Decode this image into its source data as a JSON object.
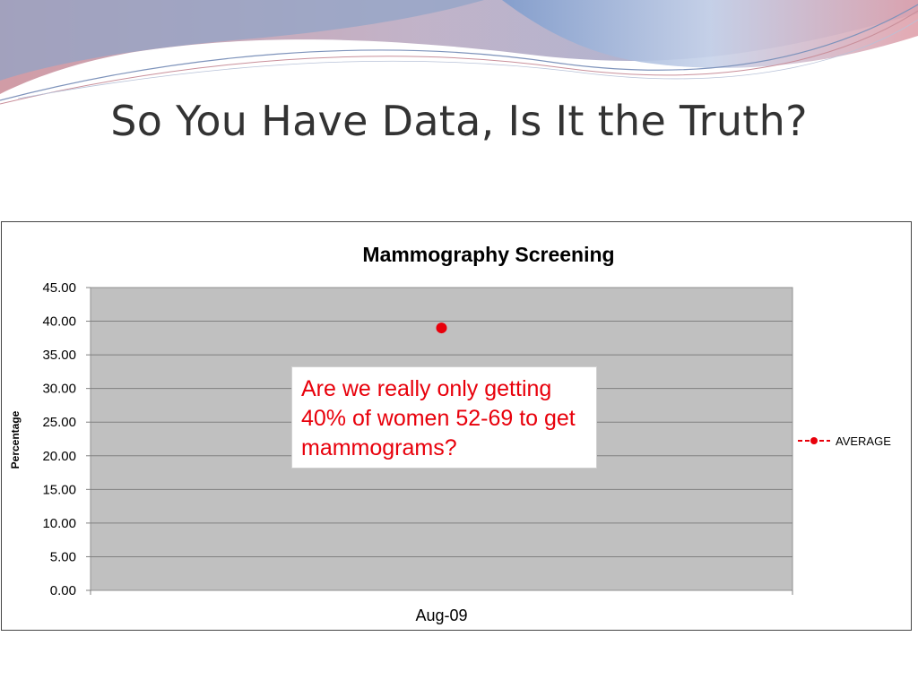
{
  "slide": {
    "title": "So You Have Data, Is It the Truth?"
  },
  "chart_data": {
    "type": "line",
    "title": "Mammography Screening",
    "xlabel": "",
    "ylabel": "Percentage",
    "categories": [
      "Aug-09"
    ],
    "series": [
      {
        "name": "AVERAGE",
        "values": [
          39
        ],
        "color": "#e8000b"
      }
    ],
    "ylim": [
      0,
      45
    ],
    "ytick_step": 5,
    "ytick_decimals": 2,
    "grid": true,
    "plot_background": "#c0c0c0",
    "legend": "right"
  },
  "callout": {
    "text": "Are we really only getting 40% of women 52-69 to get mammograms?",
    "color": "#e8000b"
  },
  "colors": {
    "banner_blue": "#a8b8d8",
    "banner_red": "#d87a88"
  }
}
